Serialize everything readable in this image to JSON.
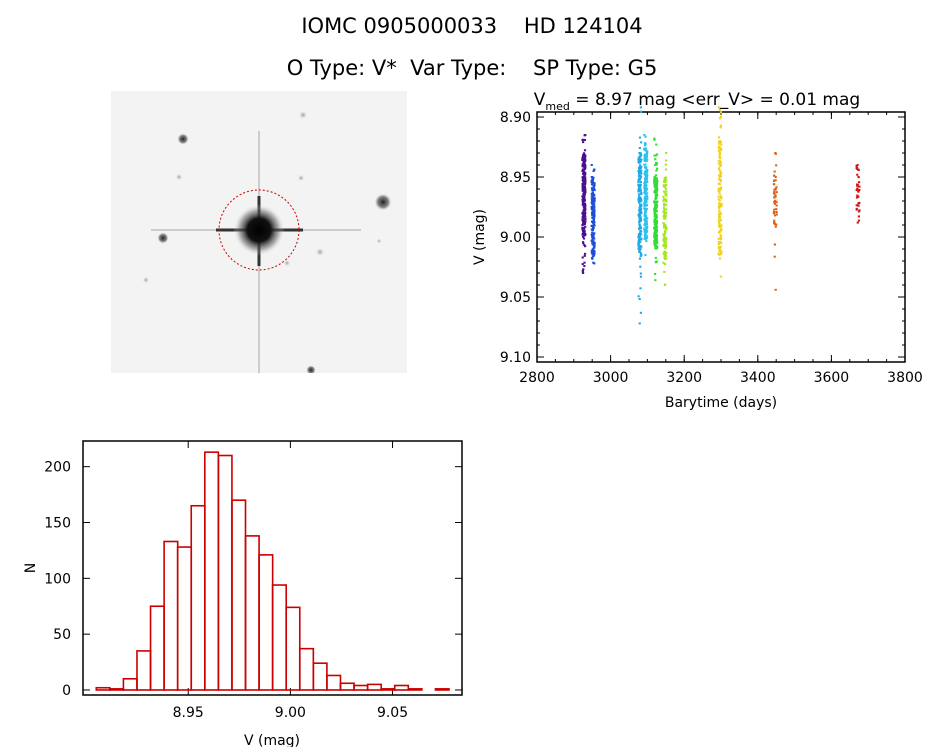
{
  "header": {
    "title": "IOMC 0905000033    HD 124104",
    "subtitle": "O Type: V*  Var Type:    SP Type: G5"
  },
  "sky_image": {
    "description_icon": "star-field-image",
    "circle_color": "#cc0000"
  },
  "chart_data": [
    {
      "type": "scatter",
      "title_main": "V",
      "title_sub": "med",
      "title_rest": " = 8.97 mag <err_V> = 0.01 mag",
      "xlabel": "Barytime (days)",
      "ylabel": "V (mag)",
      "xlim": [
        2800,
        3800
      ],
      "ylim": [
        9.1,
        8.9
      ],
      "y_inverted": true,
      "xticks": [
        "2800",
        "3000",
        "3200",
        "3400",
        "3600",
        "3800"
      ],
      "yticks": [
        "8.90",
        "8.95",
        "9.00",
        "9.05",
        "9.10"
      ],
      "clusters": [
        {
          "x": 2930,
          "ymin": 8.915,
          "ymax": 9.03,
          "core": [
            8.93,
            9.0
          ],
          "n": 260,
          "color": "#4b0f8f"
        },
        {
          "x": 2955,
          "ymin": 8.94,
          "ymax": 9.022,
          "core": [
            8.95,
            9.015
          ],
          "n": 180,
          "color": "#1f4fd6"
        },
        {
          "x": 3082,
          "ymin": 8.892,
          "ymax": 9.072,
          "core": [
            8.93,
            9.015
          ],
          "n": 200,
          "color": "#1fa9e6"
        },
        {
          "x": 3098,
          "ymin": 8.915,
          "ymax": 9.015,
          "core": [
            8.925,
            9.0
          ],
          "n": 200,
          "color": "#2bc2f0"
        },
        {
          "x": 3125,
          "ymin": 8.918,
          "ymax": 9.036,
          "core": [
            8.95,
            9.01
          ],
          "n": 220,
          "color": "#33dd33"
        },
        {
          "x": 3150,
          "ymin": 8.93,
          "ymax": 9.04,
          "core": [
            8.95,
            9.02
          ],
          "n": 120,
          "color": "#a6e61f"
        },
        {
          "x": 3300,
          "ymin": 8.892,
          "ymax": 9.033,
          "core": [
            8.92,
            9.015
          ],
          "n": 140,
          "color": "#f2d21a"
        },
        {
          "x": 3450,
          "ymin": 8.93,
          "ymax": 9.044,
          "core": [
            8.94,
            8.99
          ],
          "n": 45,
          "color": "#e0601a"
        },
        {
          "x": 3675,
          "ymin": 8.94,
          "ymax": 8.988,
          "core": [
            8.94,
            8.98
          ],
          "n": 35,
          "color": "#d01818"
        }
      ]
    },
    {
      "type": "bar",
      "subtype": "histogram",
      "xlabel": "V (mag)",
      "ylabel": "N",
      "xlim": [
        8.8985,
        9.084
      ],
      "ylim": [
        -4.5,
        223
      ],
      "xticks": [
        "8.95",
        "9.00",
        "9.05"
      ],
      "yticks": [
        "0",
        "50",
        "100",
        "150",
        "200"
      ],
      "bin_start": 8.905,
      "bin_width": 0.00664,
      "values": [
        2,
        1,
        10,
        35,
        75,
        133,
        128,
        165,
        213,
        210,
        170,
        138,
        121,
        94,
        74,
        37,
        24,
        13,
        6,
        4,
        5,
        1,
        4,
        1,
        0,
        1
      ],
      "color": "#cc0000"
    }
  ]
}
